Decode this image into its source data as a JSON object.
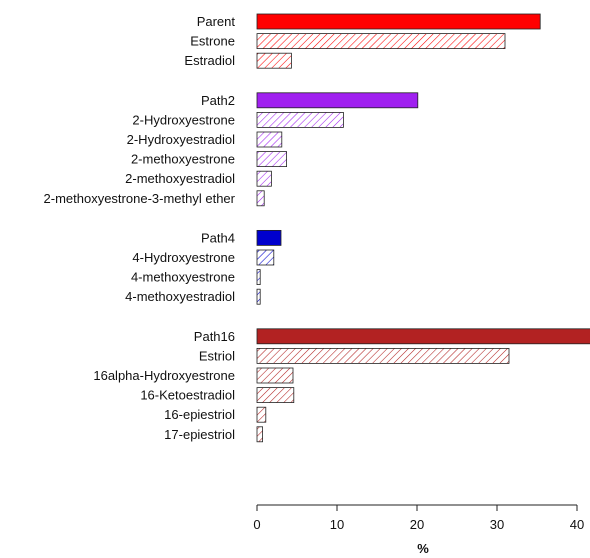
{
  "chart_data": {
    "type": "bar",
    "orientation": "horizontal",
    "xlabel": "%",
    "xlim": [
      0,
      40
    ],
    "xticks": [
      0,
      10,
      20,
      30,
      40
    ],
    "grid": false,
    "groups": [
      {
        "color": "#ff0000",
        "bars": [
          {
            "label": "Parent",
            "value": 35.4,
            "style": "solid"
          },
          {
            "label": "Estrone",
            "value": 31.0,
            "style": "hatched"
          },
          {
            "label": "Estradiol",
            "value": 4.3,
            "style": "hatched"
          }
        ]
      },
      {
        "color": "#a020f0",
        "bars": [
          {
            "label": "Path2",
            "value": 20.1,
            "style": "solid"
          },
          {
            "label": "2-Hydroxyestrone",
            "value": 10.8,
            "style": "hatched"
          },
          {
            "label": "2-Hydroxyestradiol",
            "value": 3.1,
            "style": "hatched"
          },
          {
            "label": "2-methoxyestrone",
            "value": 3.7,
            "style": "hatched"
          },
          {
            "label": "2-methoxyestradiol",
            "value": 1.8,
            "style": "hatched"
          },
          {
            "label": "2-methoxyestrone-3-methyl ether",
            "value": 0.9,
            "style": "hatched"
          }
        ]
      },
      {
        "color": "#0000cd",
        "bars": [
          {
            "label": "Path4",
            "value": 3.0,
            "style": "solid"
          },
          {
            "label": "4-Hydroxyestrone",
            "value": 2.1,
            "style": "hatched"
          },
          {
            "label": "4-methoxyestrone",
            "value": 0.4,
            "style": "hatched"
          },
          {
            "label": "4-methoxyestradiol",
            "value": 0.4,
            "style": "hatched"
          }
        ]
      },
      {
        "color": "#b22222",
        "bars": [
          {
            "label": "Path16",
            "value": 41.7,
            "style": "solid"
          },
          {
            "label": "Estriol",
            "value": 31.5,
            "style": "hatched"
          },
          {
            "label": "16alpha-Hydroxyestrone",
            "value": 4.5,
            "style": "hatched"
          },
          {
            "label": "16-Ketoestradiol",
            "value": 4.6,
            "style": "hatched"
          },
          {
            "label": "16-epiestriol",
            "value": 1.1,
            "style": "hatched"
          },
          {
            "label": "17-epiestriol",
            "value": 0.7,
            "style": "hatched"
          }
        ]
      }
    ]
  }
}
